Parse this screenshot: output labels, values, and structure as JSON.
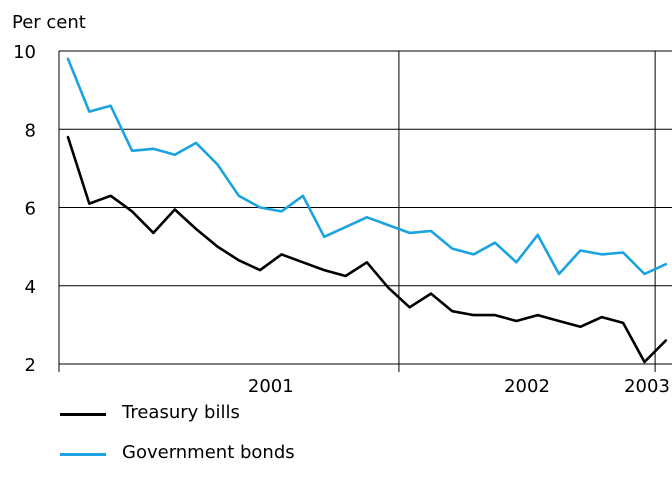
{
  "chart_data": {
    "type": "line",
    "ylabel": "Per cent",
    "ylim": [
      2,
      10
    ],
    "yticks": [
      2,
      4,
      6,
      8,
      10
    ],
    "year_labels": [
      "2001",
      "2002",
      "2003"
    ],
    "x_start": "2000-09",
    "grid": true,
    "legend_position": "bottom-left",
    "series": [
      {
        "name": "Treasury bills",
        "color": "#000000",
        "values": [
          7.8,
          6.1,
          6.3,
          5.9,
          5.35,
          5.95,
          5.45,
          5.0,
          4.65,
          4.4,
          4.8,
          4.6,
          4.4,
          4.25,
          4.6,
          3.95,
          3.45,
          3.8,
          3.35,
          3.25,
          3.25,
          3.1,
          3.25,
          3.1,
          2.95,
          3.2,
          3.05,
          2.05,
          2.6
        ]
      },
      {
        "name": "Government bonds",
        "color": "#1aa3e0",
        "values": [
          9.8,
          8.45,
          8.6,
          7.45,
          7.5,
          7.35,
          7.65,
          7.1,
          6.3,
          6.0,
          5.9,
          6.3,
          5.25,
          5.5,
          5.75,
          5.55,
          5.35,
          5.4,
          4.95,
          4.8,
          5.1,
          4.6,
          5.3,
          4.3,
          4.9,
          4.8,
          4.85,
          4.3,
          4.55
        ]
      }
    ]
  }
}
